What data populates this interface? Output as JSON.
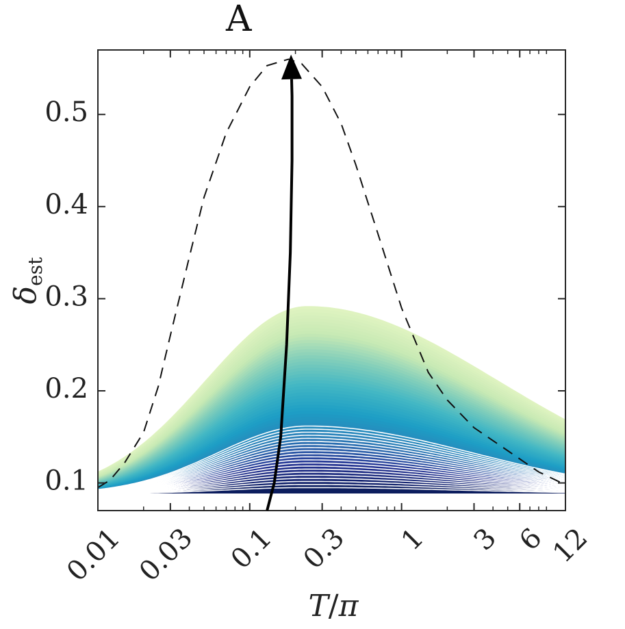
{
  "chart_data": {
    "type": "area",
    "xlabel_main": "T",
    "xlabel_sep": "/",
    "xlabel_sym": "π",
    "ylabel_main": "δ",
    "ylabel_sub": "est",
    "x_scale": "log",
    "xlim": [
      0.01,
      12
    ],
    "ylim": [
      0.07,
      0.57
    ],
    "x_ticks": [
      0.01,
      0.03,
      0.1,
      0.3,
      1,
      3,
      6,
      12
    ],
    "x_tick_labels": [
      "0.01",
      "0.03",
      "0.1",
      "0.3",
      "1",
      "3",
      "6",
      "12"
    ],
    "y_ticks": [
      0.1,
      0.2,
      0.3,
      0.4,
      0.5
    ],
    "y_tick_labels": [
      "0.1",
      "0.2",
      "0.3",
      "0.4",
      "0.5"
    ],
    "grid": false,
    "baseline": 0.088,
    "family_peak_x": 0.24,
    "family_peak_min": 0.095,
    "family_peak_max": 0.292,
    "family_curve_count": 60,
    "colormap": [
      "#0c1d5e",
      "#253494",
      "#2c7fb8",
      "#1d9ec5",
      "#41b6c4",
      "#7fcdbb",
      "#c7e9b4",
      "#dff3c0"
    ],
    "dashed_series": {
      "x": [
        0.01,
        0.012,
        0.015,
        0.02,
        0.025,
        0.03,
        0.04,
        0.05,
        0.07,
        0.1,
        0.13,
        0.18,
        0.22,
        0.3,
        0.4,
        0.5,
        0.7,
        1,
        1.5,
        2,
        3,
        5,
        8,
        12
      ],
      "y": [
        0.095,
        0.103,
        0.122,
        0.155,
        0.205,
        0.26,
        0.345,
        0.41,
        0.48,
        0.53,
        0.553,
        0.56,
        0.555,
        0.53,
        0.49,
        0.445,
        0.37,
        0.29,
        0.22,
        0.19,
        0.16,
        0.135,
        0.112,
        0.098
      ]
    },
    "arrow": {
      "label": "A",
      "x": [
        0.13,
        0.145,
        0.16,
        0.175,
        0.185,
        0.19,
        0.19,
        0.187
      ],
      "y": [
        0.07,
        0.1,
        0.15,
        0.25,
        0.35,
        0.45,
        0.52,
        0.565
      ]
    }
  }
}
